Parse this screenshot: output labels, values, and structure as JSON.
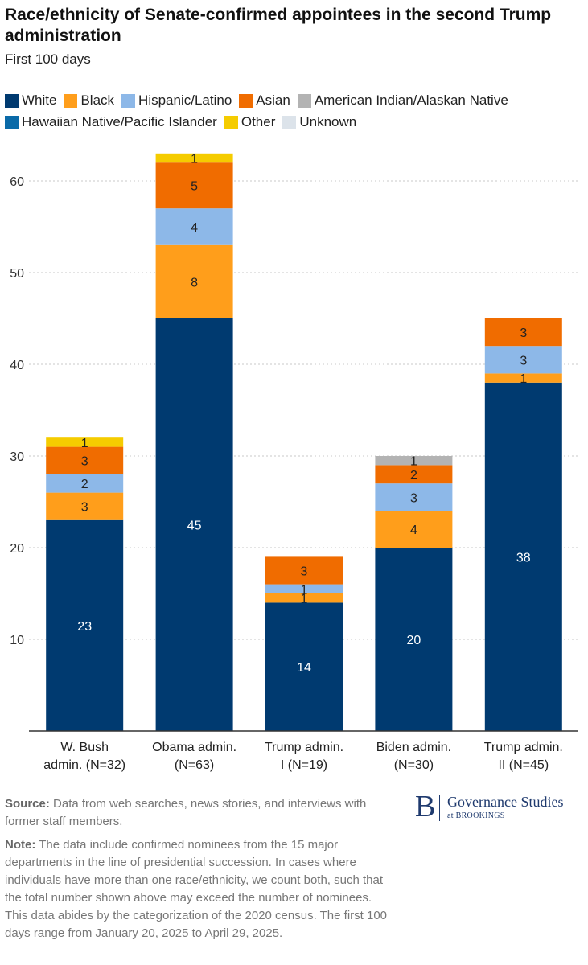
{
  "chart_data": {
    "type": "bar",
    "stacked": true,
    "title": "Race/ethnicity of Senate-confirmed appointees in the second Trump administration",
    "subtitle": "First 100 days",
    "categories": [
      [
        "W. Bush",
        "admin. (N=32)"
      ],
      [
        "Obama admin.",
        "(N=63)"
      ],
      [
        "Trump admin.",
        "I (N=19)"
      ],
      [
        "Biden admin.",
        "(N=30)"
      ],
      [
        "Trump admin.",
        "II (N=45)"
      ]
    ],
    "series": [
      {
        "name": "White",
        "color": "#003a70",
        "label_color": "#ffffff",
        "values": [
          23,
          45,
          14,
          20,
          38
        ]
      },
      {
        "name": "Black",
        "color": "#ff9e1b",
        "label_color": "#222222",
        "values": [
          3,
          8,
          1,
          4,
          1
        ]
      },
      {
        "name": "Hispanic/Latino",
        "color": "#8db8e8",
        "label_color": "#222222",
        "values": [
          2,
          4,
          1,
          3,
          3
        ]
      },
      {
        "name": "Asian",
        "color": "#f06c00",
        "label_color": "#222222",
        "values": [
          3,
          5,
          3,
          2,
          3
        ]
      },
      {
        "name": "American Indian/Alaskan Native",
        "color": "#b3b3b3",
        "label_color": "#222222",
        "values": [
          0,
          0,
          0,
          1,
          0
        ]
      },
      {
        "name": "Hawaiian Native/Pacific Islander",
        "color": "#0a6aa8",
        "label_color": "#ffffff",
        "values": [
          0,
          0,
          0,
          0,
          0
        ]
      },
      {
        "name": "Other",
        "color": "#f5cc00",
        "label_color": "#222222",
        "values": [
          1,
          1,
          0,
          0,
          0
        ]
      },
      {
        "name": "Unknown",
        "color": "#dce3ea",
        "label_color": "#222222",
        "values": [
          0,
          0,
          0,
          0,
          0
        ]
      }
    ],
    "y_ticks": [
      10,
      20,
      30,
      40,
      50,
      60
    ],
    "ylim": [
      0,
      63
    ],
    "xlabel": "",
    "ylabel": "",
    "grid": true,
    "legend": "top"
  },
  "footer": {
    "source_label": "Source:",
    "source_text": "Data from web searches, news stories, and interviews with former staff members.",
    "note_label": "Note:",
    "note_text": "The data include confirmed nominees from the 15 major departments in the line of presidential succession. In cases where individuals have more than one race/ethnicity, we count both, such that the total number shown above may exceed the number of nominees. This data abides by the categorization of the 2020 census. The first 100 days range from January 20, 2025 to April 29, 2025."
  },
  "logo": {
    "mark": "B",
    "name": "Governance Studies",
    "sub": "at BROOKINGS"
  }
}
